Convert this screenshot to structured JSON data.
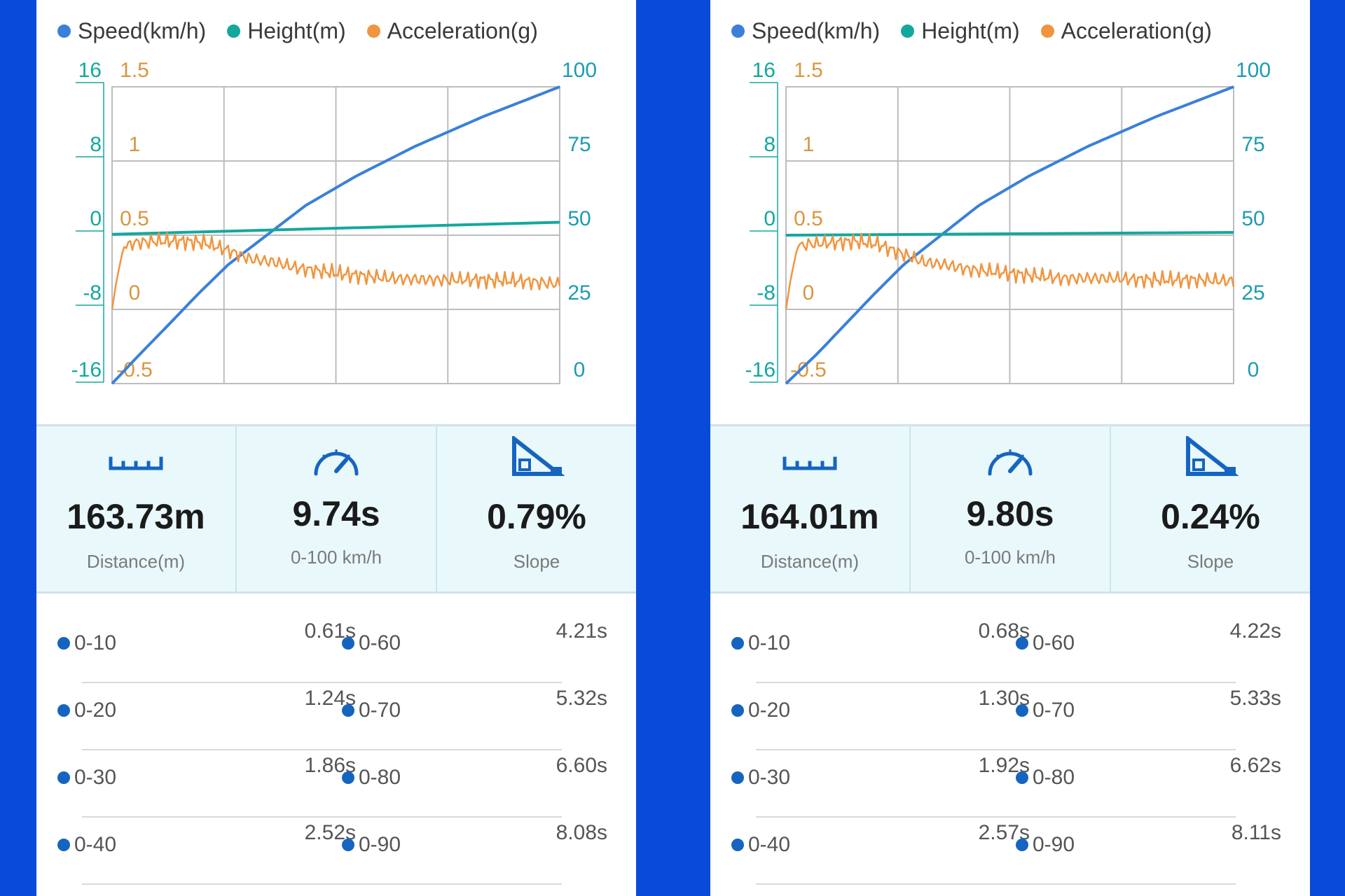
{
  "panels": [
    {
      "legend": [
        {
          "label": "Speed(km/h)",
          "color": "#3a80d9"
        },
        {
          "label": "Height(m)",
          "color": "#13a89e"
        },
        {
          "label": "Acceleration(g)",
          "color": "#f0953f"
        }
      ],
      "axes": {
        "height_ticks": [
          "16",
          "8",
          "0",
          "-8",
          "-16"
        ],
        "accel_ticks": [
          "1.5",
          "1",
          "0.5",
          "0",
          "-0.5"
        ],
        "speed_ticks": [
          "100",
          "75",
          "50",
          "25",
          "0"
        ]
      },
      "stats": [
        {
          "value": "163.73m",
          "label": "Distance(m)",
          "icon": "ruler-icon"
        },
        {
          "value": "9.74s",
          "label": "0-100 km/h",
          "icon": "speedometer-icon"
        },
        {
          "value": "0.79%",
          "label": "Slope",
          "icon": "slope-icon"
        }
      ],
      "splits": [
        {
          "left": {
            "label": "0-10",
            "time": "0.61s"
          },
          "right": {
            "label": "0-60",
            "time": "4.21s"
          }
        },
        {
          "left": {
            "label": "0-20",
            "time": "1.24s"
          },
          "right": {
            "label": "0-70",
            "time": "5.32s"
          }
        },
        {
          "left": {
            "label": "0-30",
            "time": "1.86s"
          },
          "right": {
            "label": "0-80",
            "time": "6.60s"
          }
        },
        {
          "left": {
            "label": "0-40",
            "time": "2.52s"
          },
          "right": {
            "label": "0-90",
            "time": "8.08s"
          }
        }
      ]
    },
    {
      "legend": [
        {
          "label": "Speed(km/h)",
          "color": "#3a80d9"
        },
        {
          "label": "Height(m)",
          "color": "#13a89e"
        },
        {
          "label": "Acceleration(g)",
          "color": "#f0953f"
        }
      ],
      "axes": {
        "height_ticks": [
          "16",
          "8",
          "0",
          "-8",
          "-16"
        ],
        "accel_ticks": [
          "1.5",
          "1",
          "0.5",
          "0",
          "-0.5"
        ],
        "speed_ticks": [
          "100",
          "75",
          "50",
          "25",
          "0"
        ]
      },
      "stats": [
        {
          "value": "164.01m",
          "label": "Distance(m)",
          "icon": "ruler-icon"
        },
        {
          "value": "9.80s",
          "label": "0-100 km/h",
          "icon": "speedometer-icon"
        },
        {
          "value": "0.24%",
          "label": "Slope",
          "icon": "slope-icon"
        }
      ],
      "splits": [
        {
          "left": {
            "label": "0-10",
            "time": "0.68s"
          },
          "right": {
            "label": "0-60",
            "time": "4.22s"
          }
        },
        {
          "left": {
            "label": "0-20",
            "time": "1.30s"
          },
          "right": {
            "label": "0-70",
            "time": "5.33s"
          }
        },
        {
          "left": {
            "label": "0-30",
            "time": "1.92s"
          },
          "right": {
            "label": "0-80",
            "time": "6.62s"
          }
        },
        {
          "left": {
            "label": "0-40",
            "time": "2.57s"
          },
          "right": {
            "label": "0-90",
            "time": "8.11s"
          }
        }
      ]
    }
  ],
  "chart_data": [
    {
      "type": "line",
      "x_range": [
        0,
        9.74
      ],
      "y_axes": {
        "height": {
          "range": [
            -16,
            16
          ]
        },
        "acceleration": {
          "range": [
            -0.5,
            1.5
          ]
        },
        "speed": {
          "range": [
            0,
            100
          ]
        }
      },
      "grid": true,
      "legend_position": "top",
      "series": [
        {
          "name": "Speed(km/h)",
          "axis": "speed",
          "color": "#3a80d9",
          "x": [
            0,
            0.61,
            1.24,
            1.86,
            2.52,
            4.21,
            5.32,
            6.6,
            8.08,
            9.74
          ],
          "y": [
            0,
            10,
            20,
            30,
            40,
            60,
            70,
            80,
            90,
            100
          ]
        },
        {
          "name": "Height(m)",
          "axis": "height",
          "color": "#13a89e",
          "x": [
            0,
            9.74
          ],
          "y": [
            0.1,
            1.4
          ]
        },
        {
          "name": "Acceleration(g)",
          "axis": "acceleration",
          "color": "#f0953f",
          "x": [
            0,
            0.1,
            0.25,
            0.5,
            1.0,
            1.5,
            2.0,
            2.5,
            3.0,
            3.5,
            4.0,
            5.0,
            6.0,
            7.0,
            8.0,
            9.0,
            9.74
          ],
          "y": [
            0,
            0.2,
            0.42,
            0.45,
            0.46,
            0.46,
            0.45,
            0.4,
            0.34,
            0.32,
            0.28,
            0.24,
            0.21,
            0.2,
            0.2,
            0.19,
            0.17
          ]
        }
      ]
    },
    {
      "type": "line",
      "x_range": [
        0,
        9.8
      ],
      "y_axes": {
        "height": {
          "range": [
            -16,
            16
          ]
        },
        "acceleration": {
          "range": [
            -0.5,
            1.5
          ]
        },
        "speed": {
          "range": [
            0,
            100
          ]
        }
      },
      "grid": true,
      "legend_position": "top",
      "series": [
        {
          "name": "Speed(km/h)",
          "axis": "speed",
          "color": "#3a80d9",
          "x": [
            0,
            0.68,
            1.3,
            1.92,
            2.57,
            4.22,
            5.33,
            6.62,
            8.11,
            9.8
          ],
          "y": [
            0,
            10,
            20,
            30,
            40,
            60,
            70,
            80,
            90,
            100
          ]
        },
        {
          "name": "Height(m)",
          "axis": "height",
          "color": "#13a89e",
          "x": [
            0,
            9.8
          ],
          "y": [
            0.0,
            0.3
          ]
        },
        {
          "name": "Acceleration(g)",
          "axis": "acceleration",
          "color": "#f0953f",
          "x": [
            0,
            0.1,
            0.25,
            0.5,
            1.0,
            1.5,
            2.0,
            2.5,
            3.0,
            3.5,
            4.0,
            5.0,
            6.0,
            7.0,
            8.0,
            9.0,
            9.8
          ],
          "y": [
            0,
            0.2,
            0.42,
            0.44,
            0.45,
            0.46,
            0.44,
            0.38,
            0.32,
            0.3,
            0.27,
            0.24,
            0.21,
            0.21,
            0.2,
            0.2,
            0.19
          ]
        }
      ]
    }
  ]
}
